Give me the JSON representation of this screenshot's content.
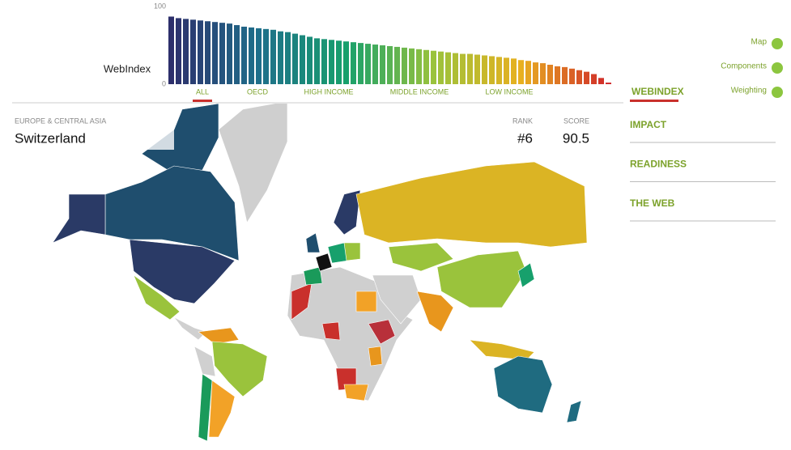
{
  "chart_data": {
    "type": "bar",
    "y_label": "WebIndex",
    "values": [
      87,
      85,
      84,
      83,
      82,
      81,
      80,
      79,
      78,
      76,
      74,
      73,
      72,
      71,
      70,
      68,
      67,
      65,
      63,
      61,
      59,
      58,
      57,
      56,
      55,
      54,
      53,
      52,
      51,
      50,
      49,
      48,
      47,
      46,
      45,
      44,
      43,
      42,
      41,
      40,
      39,
      39,
      38,
      37,
      36,
      35,
      34,
      33,
      31,
      30,
      28,
      27,
      25,
      23,
      22,
      20,
      18,
      16,
      13,
      8,
      2
    ],
    "color_scale": [
      "#2d2f6b",
      "#1f6f8b",
      "#17a06c",
      "#9ac33c",
      "#e8b020",
      "#d0282a"
    ],
    "ylim": [
      0,
      100
    ],
    "yticks": [
      0,
      100
    ]
  },
  "tabs": [
    "ALL",
    "OECD",
    "HIGH INCOME",
    "MIDDLE INCOME",
    "LOW INCOME"
  ],
  "view_options": [
    "Map",
    "Components",
    "Weighting"
  ],
  "menu": [
    "WEBINDEX",
    "IMPACT",
    "READINESS",
    "THE WEB"
  ],
  "selection": {
    "region": "EUROPE & CENTRAL ASIA",
    "country": "Switzerland",
    "rank_label": "RANK",
    "rank": "#6",
    "score_label": "SCORE",
    "score": 90.5
  }
}
